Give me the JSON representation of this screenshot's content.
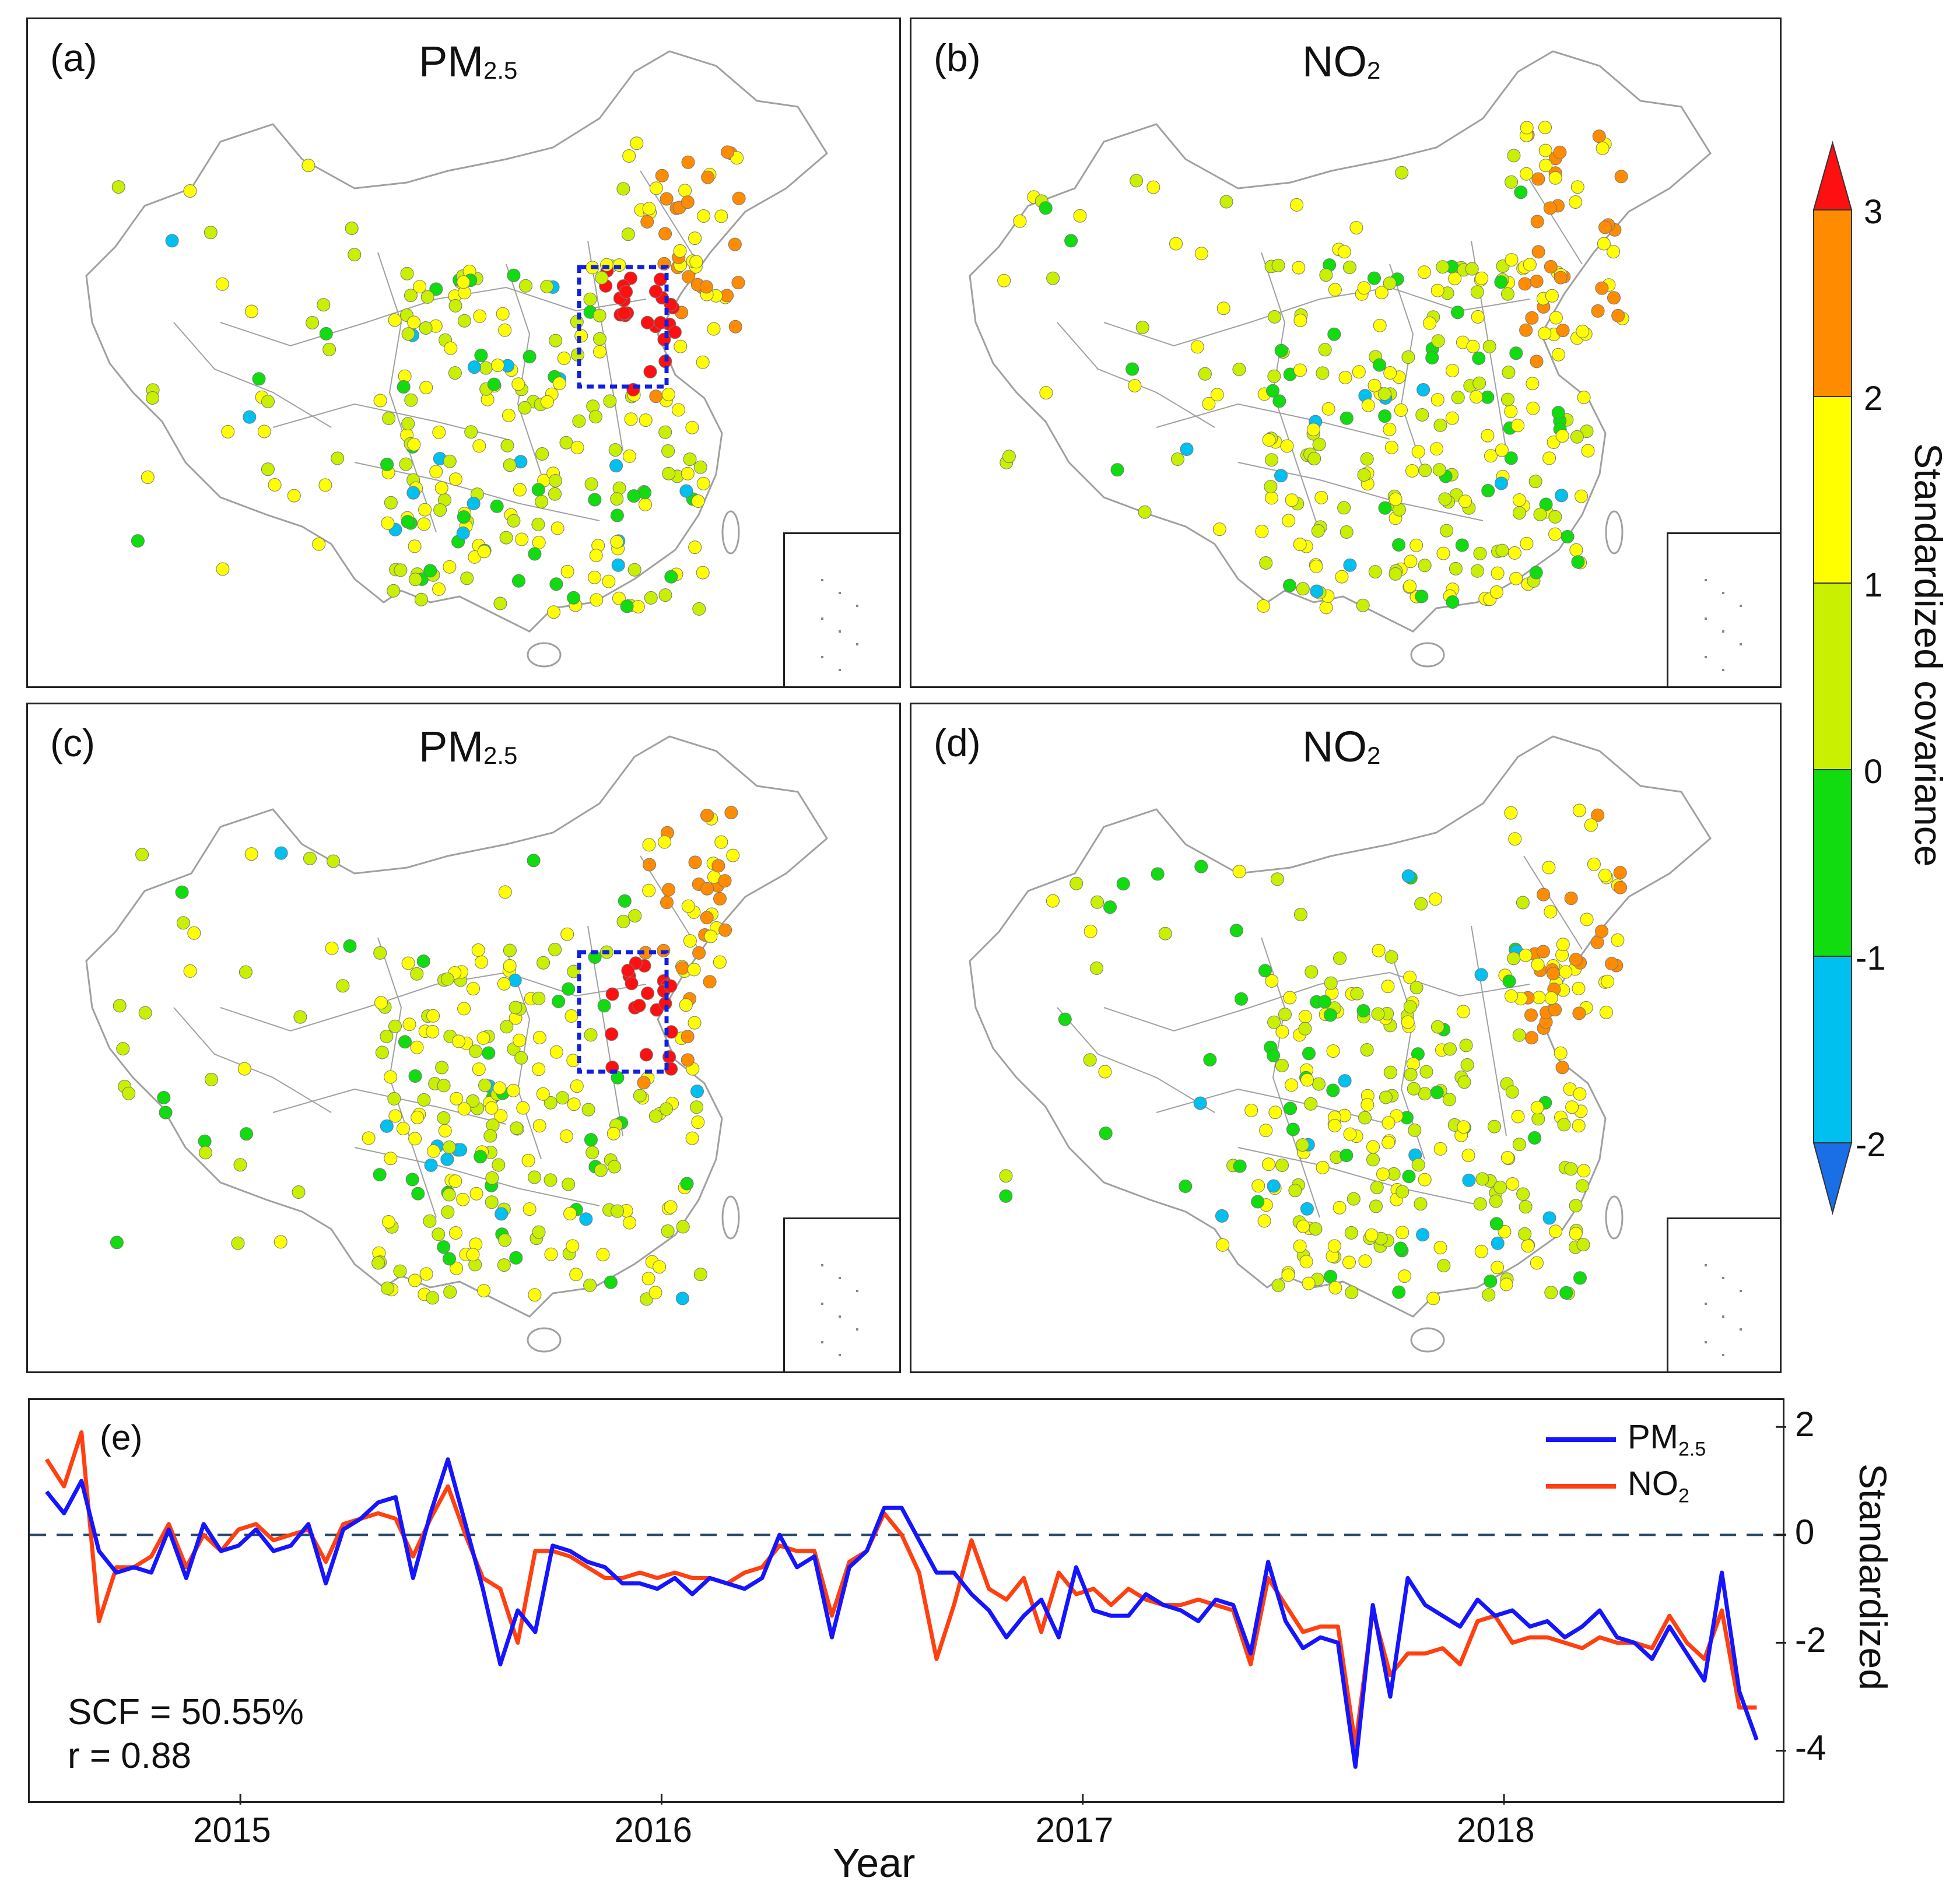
{
  "panels": [
    {
      "label": "(a)",
      "title_main": "PM",
      "title_sub": "2.5",
      "show_box": true
    },
    {
      "label": "(b)",
      "title_main": "NO",
      "title_sub": "2",
      "show_box": false
    },
    {
      "label": "(c)",
      "title_main": "PM",
      "title_sub": "2.5",
      "show_box": true
    },
    {
      "label": "(d)",
      "title_main": "NO",
      "title_sub": "2",
      "show_box": false
    }
  ],
  "colorbar": {
    "title": "Standardized covariance",
    "ticks": [
      "3",
      "2",
      "1",
      "0",
      "-1",
      "-2"
    ],
    "bins": [
      {
        "range": [
          -3,
          -2
        ],
        "color": "#1a6fe6"
      },
      {
        "range": [
          -2,
          -1
        ],
        "color": "#00c0f0"
      },
      {
        "range": [
          -1,
          0
        ],
        "color": "#10dc10"
      },
      {
        "range": [
          0,
          1
        ],
        "color": "#c8f000"
      },
      {
        "range": [
          1,
          2
        ],
        "color": "#ffff00"
      },
      {
        "range": [
          2,
          3
        ],
        "color": "#ff8c00"
      },
      {
        "range": [
          3,
          4
        ],
        "color": "#ff1010"
      }
    ]
  },
  "colors": {
    "pm25_line": "#1515ff",
    "no2_line": "#ff4010",
    "box": "#1020e0",
    "boundary": "#a0a0a0",
    "zero_line": "#2a4a6a"
  },
  "timeseries": {
    "label": "(e)",
    "stat_scf": "SCF = 50.55%",
    "stat_r": "r = 0.88",
    "xlabel": "Year",
    "ylabel": "Standardized",
    "legend_pm_main": "PM",
    "legend_pm_sub": "2.5",
    "legend_no2_main": "NO",
    "legend_no2_sub": "2"
  },
  "chart_data": {
    "type": "line",
    "title": "",
    "xlabel": "Year",
    "ylabel": "Standardized",
    "xlim": [
      2014.5,
      2018.67
    ],
    "ylim": [
      -5,
      2.5
    ],
    "xticks": [
      2015,
      2016,
      2017,
      2018
    ],
    "xtick_labels": [
      "2015",
      "2016",
      "2017",
      "2018"
    ],
    "yticks": [
      2,
      0,
      -2,
      -4
    ],
    "ytick_labels": [
      "2",
      "0",
      "-2",
      "-4"
    ],
    "x_start": 2014.54,
    "x_step_months": 0.5,
    "series": [
      {
        "name": "PM2.5",
        "values": [
          0.8,
          0.4,
          1.0,
          -0.3,
          -0.7,
          -0.6,
          -0.7,
          0.1,
          -0.8,
          0.2,
          -0.3,
          -0.2,
          0.1,
          -0.3,
          -0.2,
          0.2,
          -0.9,
          0.1,
          0.3,
          0.6,
          0.7,
          -0.8,
          0.4,
          1.4,
          0.2,
          -1.0,
          -2.4,
          -1.4,
          -1.8,
          -0.2,
          -0.3,
          -0.5,
          -0.6,
          -0.9,
          -0.9,
          -1.0,
          -0.8,
          -1.1,
          -0.8,
          -0.9,
          -1.0,
          -0.8,
          0.0,
          -0.6,
          -0.4,
          -1.9,
          -0.6,
          -0.3,
          0.5,
          0.5,
          -0.1,
          -0.7,
          -0.7,
          -1.1,
          -1.4,
          -1.9,
          -1.5,
          -1.2,
          -1.9,
          -0.6,
          -1.4,
          -1.5,
          -1.5,
          -1.1,
          -1.3,
          -1.4,
          -1.6,
          -1.2,
          -1.3,
          -2.2,
          -0.5,
          -1.6,
          -2.1,
          -1.9,
          -2.0,
          -4.3,
          -1.3,
          -3.0,
          -0.8,
          -1.3,
          -1.5,
          -1.7,
          -1.2,
          -1.5,
          -1.4,
          -1.7,
          -1.6,
          -1.9,
          -1.7,
          -1.4,
          -1.9,
          -2.0,
          -2.3,
          -1.7,
          -2.2,
          -2.7,
          -0.7,
          -2.9,
          -3.8
        ]
      },
      {
        "name": "NO2",
        "values": [
          1.4,
          0.9,
          1.9,
          -1.6,
          -0.6,
          -0.6,
          -0.4,
          0.2,
          -0.6,
          0.0,
          -0.3,
          0.1,
          0.2,
          -0.1,
          0.0,
          0.1,
          -0.5,
          0.2,
          0.3,
          0.4,
          0.3,
          -0.4,
          0.3,
          0.9,
          0.0,
          -0.8,
          -1.0,
          -2.0,
          -0.3,
          -0.3,
          -0.4,
          -0.6,
          -0.8,
          -0.8,
          -0.7,
          -0.8,
          -0.7,
          -0.8,
          -0.8,
          -0.9,
          -0.7,
          -0.6,
          -0.2,
          -0.3,
          -0.3,
          -1.5,
          -0.5,
          -0.3,
          0.4,
          0.0,
          -0.7,
          -2.3,
          -1.3,
          -0.1,
          -1.0,
          -1.2,
          -0.8,
          -1.8,
          -0.7,
          -1.1,
          -1.0,
          -1.3,
          -1.0,
          -1.2,
          -1.3,
          -1.3,
          -1.2,
          -1.3,
          -1.4,
          -2.4,
          -0.8,
          -1.3,
          -1.8,
          -1.7,
          -1.7,
          -3.9,
          -1.4,
          -2.6,
          -2.2,
          -2.2,
          -2.1,
          -2.4,
          -1.6,
          -1.5,
          -2.0,
          -1.9,
          -1.9,
          -2.0,
          -2.1,
          -1.9,
          -2.0,
          -2.0,
          -2.1,
          -1.5,
          -2.0,
          -2.3,
          -1.4,
          -3.2,
          -3.2
        ]
      }
    ]
  }
}
